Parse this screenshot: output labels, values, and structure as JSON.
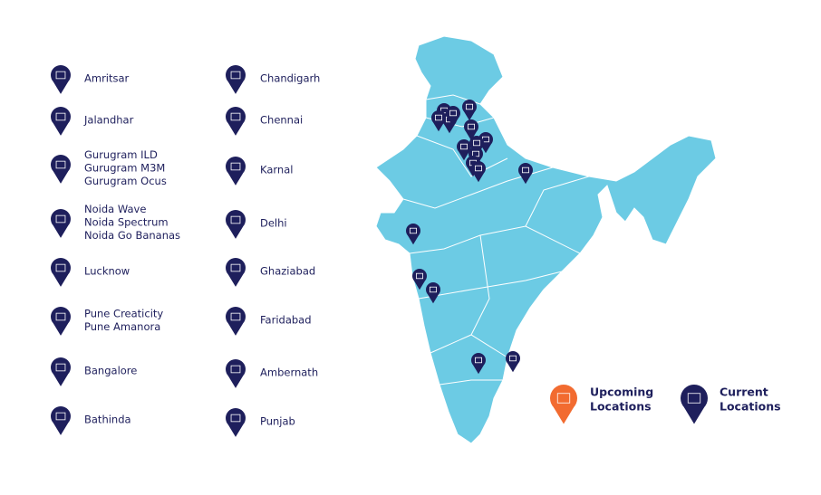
{
  "locations": [
    [
      {
        "lines": [
          "Amritsar"
        ]
      },
      {
        "lines": [
          "Jalandhar"
        ]
      },
      {
        "lines": [
          "Gurugram ILD",
          "Gurugram M3M",
          "Gurugram Ocus"
        ]
      },
      {
        "lines": [
          "Noida Wave",
          "Noida Spectrum",
          "Noida Go Bananas"
        ]
      },
      {
        "lines": [
          "Lucknow"
        ]
      },
      {
        "lines": [
          "Pune Creaticity",
          "Pune Amanora"
        ]
      },
      {
        "lines": [
          "Bangalore"
        ]
      },
      {
        "lines": [
          "Bathinda"
        ]
      }
    ],
    [
      {
        "lines": [
          "Chandigarh"
        ]
      },
      {
        "lines": [
          "Chennai"
        ]
      },
      {
        "lines": [
          "Karnal"
        ]
      },
      {
        "lines": [
          "Delhi"
        ]
      },
      {
        "lines": [
          "Ghaziabad"
        ]
      },
      {
        "lines": [
          "Faridabad"
        ]
      },
      {
        "lines": [
          "Ambernath"
        ]
      },
      {
        "lines": [
          "Punjab"
        ]
      }
    ]
  ],
  "legend": [
    {
      "lines": [
        "Upcoming",
        "Locations"
      ]
    },
    {
      "lines": [
        "Current",
        "Locations"
      ]
    }
  ]
}
